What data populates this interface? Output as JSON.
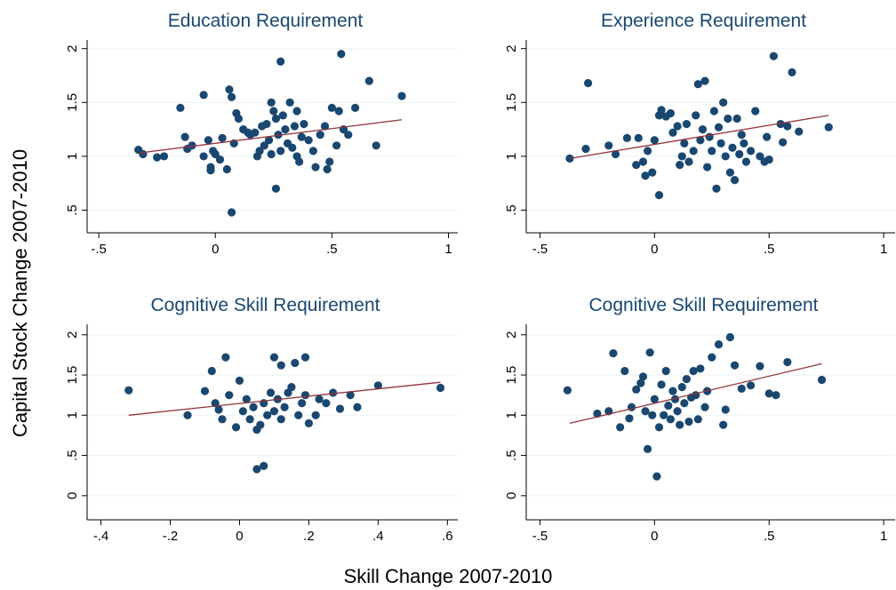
{
  "ylabel": "Capital Stock Change 2007-2010",
  "xlabel": "Skill Change 2007-2010",
  "chart_data": [
    {
      "type": "scatter",
      "title": "Education Requirement",
      "color": "#1a476f",
      "grid": true,
      "xlim": [
        -0.55,
        1.04
      ],
      "ylim": [
        0.29,
        2.08
      ],
      "xticks": [
        {
          "value": -0.5,
          "label": "-.5"
        },
        0,
        {
          "value": 0.5,
          "label": ".5"
        },
        1
      ],
      "yticks": [
        {
          "value": 0.5,
          "label": ".5"
        },
        1,
        1.5,
        2
      ],
      "x": [
        -0.33,
        -0.31,
        -0.25,
        -0.22,
        -0.15,
        -0.13,
        -0.12,
        -0.1,
        -0.05,
        -0.05,
        -0.03,
        -0.02,
        -0.02,
        -0.01,
        0.0,
        0.02,
        0.03,
        0.05,
        0.06,
        0.07,
        0.07,
        0.08,
        0.09,
        0.1,
        0.12,
        0.14,
        0.15,
        0.17,
        0.18,
        0.19,
        0.2,
        0.21,
        0.22,
        0.23,
        0.24,
        0.24,
        0.25,
        0.26,
        0.26,
        0.27,
        0.28,
        0.28,
        0.29,
        0.3,
        0.31,
        0.32,
        0.33,
        0.34,
        0.35,
        0.35,
        0.36,
        0.37,
        0.38,
        0.4,
        0.42,
        0.43,
        0.45,
        0.47,
        0.48,
        0.49,
        0.5,
        0.52,
        0.53,
        0.54,
        0.55,
        0.57,
        0.6,
        0.66,
        0.69,
        0.8
      ],
      "values": [
        1.06,
        1.02,
        0.99,
        1.0,
        1.45,
        1.18,
        1.07,
        1.1,
        1.57,
        1.0,
        1.15,
        0.9,
        0.87,
        1.05,
        1.02,
        0.97,
        1.17,
        0.88,
        1.62,
        1.55,
        0.48,
        1.12,
        1.4,
        1.35,
        1.25,
        1.22,
        1.2,
        1.22,
        1.0,
        1.05,
        1.28,
        1.1,
        1.3,
        1.15,
        1.5,
        1.02,
        1.42,
        1.35,
        0.7,
        1.2,
        1.88,
        1.05,
        1.38,
        1.25,
        1.12,
        1.5,
        1.08,
        1.28,
        1.0,
        1.42,
        0.95,
        1.18,
        1.3,
        1.15,
        1.05,
        0.9,
        1.2,
        1.28,
        0.88,
        0.95,
        1.45,
        1.1,
        1.42,
        1.95,
        1.25,
        1.2,
        1.45,
        1.7,
        1.1,
        1.56
      ],
      "fit": {
        "color": "#90353b",
        "x": [
          -0.33,
          0.8
        ],
        "y": [
          1.03,
          1.34
        ]
      }
    },
    {
      "type": "scatter",
      "title": "Experience Requirement",
      "color": "#1a476f",
      "grid": true,
      "xlim": [
        -0.56,
        1.05
      ],
      "ylim": [
        0.29,
        2.08
      ],
      "xticks": [
        {
          "value": -0.5,
          "label": "-.5"
        },
        0,
        {
          "value": 0.5,
          "label": ".5"
        },
        1
      ],
      "yticks": [
        {
          "value": 0.5,
          "label": ".5"
        },
        1,
        1.5,
        2
      ],
      "x": [
        -0.37,
        -0.3,
        -0.29,
        -0.2,
        -0.17,
        -0.12,
        -0.08,
        -0.07,
        -0.05,
        -0.04,
        -0.03,
        -0.01,
        0.0,
        0.02,
        0.02,
        0.03,
        0.05,
        0.07,
        0.08,
        0.1,
        0.11,
        0.12,
        0.13,
        0.14,
        0.15,
        0.17,
        0.18,
        0.19,
        0.2,
        0.21,
        0.22,
        0.23,
        0.24,
        0.25,
        0.26,
        0.27,
        0.28,
        0.29,
        0.3,
        0.31,
        0.32,
        0.33,
        0.34,
        0.35,
        0.36,
        0.37,
        0.38,
        0.39,
        0.4,
        0.42,
        0.44,
        0.46,
        0.48,
        0.49,
        0.5,
        0.52,
        0.55,
        0.56,
        0.58,
        0.6,
        0.63,
        0.76
      ],
      "values": [
        0.98,
        1.07,
        1.68,
        1.1,
        1.02,
        1.17,
        0.92,
        1.17,
        0.95,
        0.82,
        1.05,
        0.85,
        1.15,
        0.64,
        1.38,
        1.43,
        1.37,
        1.4,
        1.22,
        1.28,
        0.92,
        1.0,
        1.12,
        1.3,
        0.95,
        1.05,
        1.38,
        1.67,
        1.15,
        1.25,
        1.7,
        0.9,
        1.18,
        1.05,
        1.42,
        0.7,
        1.27,
        1.12,
        1.5,
        1.0,
        1.35,
        0.85,
        1.08,
        0.78,
        1.35,
        1.02,
        1.2,
        1.12,
        0.95,
        1.05,
        1.42,
        1.0,
        0.95,
        1.18,
        0.97,
        1.93,
        1.3,
        1.13,
        1.28,
        1.78,
        1.23,
        1.27
      ],
      "fit": {
        "color": "#90353b",
        "x": [
          -0.37,
          0.76
        ],
        "y": [
          0.98,
          1.38
        ]
      }
    },
    {
      "type": "scatter",
      "title": "Cognitive Skill Requirement",
      "color": "#1a476f",
      "grid": true,
      "xlim": [
        -0.44,
        0.63
      ],
      "ylim": [
        -0.3,
        2.13
      ],
      "xticks": [
        {
          "value": -0.4,
          "label": "-.4"
        },
        {
          "value": -0.2,
          "label": "-.2"
        },
        0,
        {
          "value": 0.2,
          "label": ".2"
        },
        {
          "value": 0.4,
          "label": ".4"
        },
        {
          "value": 0.6,
          "label": ".6"
        }
      ],
      "yticks": [
        0,
        {
          "value": 0.5,
          "label": ".5"
        },
        1,
        1.5,
        2
      ],
      "x": [
        -0.32,
        -0.15,
        -0.1,
        -0.08,
        -0.07,
        -0.06,
        -0.05,
        -0.04,
        -0.03,
        -0.01,
        0.0,
        0.01,
        0.02,
        0.03,
        0.04,
        0.05,
        0.05,
        0.06,
        0.07,
        0.07,
        0.08,
        0.09,
        0.1,
        0.1,
        0.11,
        0.12,
        0.12,
        0.13,
        0.14,
        0.15,
        0.16,
        0.17,
        0.18,
        0.19,
        0.19,
        0.2,
        0.22,
        0.23,
        0.25,
        0.27,
        0.29,
        0.32,
        0.34,
        0.4,
        0.58
      ],
      "values": [
        1.31,
        1.0,
        1.3,
        1.55,
        1.15,
        1.07,
        0.95,
        1.72,
        1.25,
        0.85,
        1.43,
        1.05,
        1.2,
        0.95,
        1.1,
        0.82,
        0.33,
        0.88,
        1.15,
        0.37,
        1.0,
        1.28,
        1.05,
        1.72,
        1.2,
        1.62,
        0.95,
        1.1,
        1.28,
        1.35,
        1.65,
        1.0,
        1.15,
        1.72,
        1.25,
        0.9,
        1.0,
        1.2,
        1.15,
        1.28,
        1.08,
        1.25,
        1.1,
        1.37,
        1.34
      ],
      "fit": {
        "color": "#90353b",
        "x": [
          -0.32,
          0.58
        ],
        "y": [
          1.0,
          1.41
        ]
      }
    },
    {
      "type": "scatter",
      "title": "Cognitive Skill Requirement",
      "color": "#1a476f",
      "grid": true,
      "xlim": [
        -0.56,
        1.05
      ],
      "ylim": [
        -0.3,
        2.13
      ],
      "xticks": [
        {
          "value": -0.5,
          "label": "-.5"
        },
        0,
        {
          "value": 0.5,
          "label": ".5"
        },
        1
      ],
      "yticks": [
        0,
        {
          "value": 0.5,
          "label": ".5"
        },
        1,
        1.5,
        2
      ],
      "x": [
        -0.38,
        -0.25,
        -0.2,
        -0.18,
        -0.15,
        -0.13,
        -0.11,
        -0.1,
        -0.08,
        -0.06,
        -0.05,
        -0.04,
        -0.03,
        -0.02,
        -0.01,
        0.0,
        0.01,
        0.02,
        0.03,
        0.04,
        0.05,
        0.06,
        0.07,
        0.08,
        0.09,
        0.1,
        0.11,
        0.12,
        0.13,
        0.14,
        0.15,
        0.16,
        0.17,
        0.18,
        0.19,
        0.2,
        0.22,
        0.23,
        0.25,
        0.28,
        0.3,
        0.31,
        0.33,
        0.35,
        0.38,
        0.42,
        0.46,
        0.5,
        0.53,
        0.58,
        0.73
      ],
      "values": [
        1.31,
        1.02,
        1.05,
        1.77,
        0.85,
        1.55,
        0.96,
        1.1,
        1.32,
        1.4,
        1.48,
        1.05,
        0.58,
        1.78,
        1.0,
        1.2,
        0.24,
        0.85,
        1.38,
        1.0,
        1.55,
        1.12,
        0.95,
        1.3,
        1.2,
        1.05,
        0.88,
        1.35,
        1.15,
        1.45,
        0.92,
        1.22,
        1.55,
        1.25,
        0.95,
        1.58,
        1.1,
        1.3,
        1.72,
        1.88,
        0.88,
        1.07,
        1.97,
        1.62,
        1.33,
        1.37,
        1.61,
        1.27,
        1.25,
        1.66,
        1.44
      ],
      "fit": {
        "color": "#90353b",
        "x": [
          -0.37,
          0.73
        ],
        "y": [
          0.9,
          1.64
        ]
      }
    }
  ]
}
